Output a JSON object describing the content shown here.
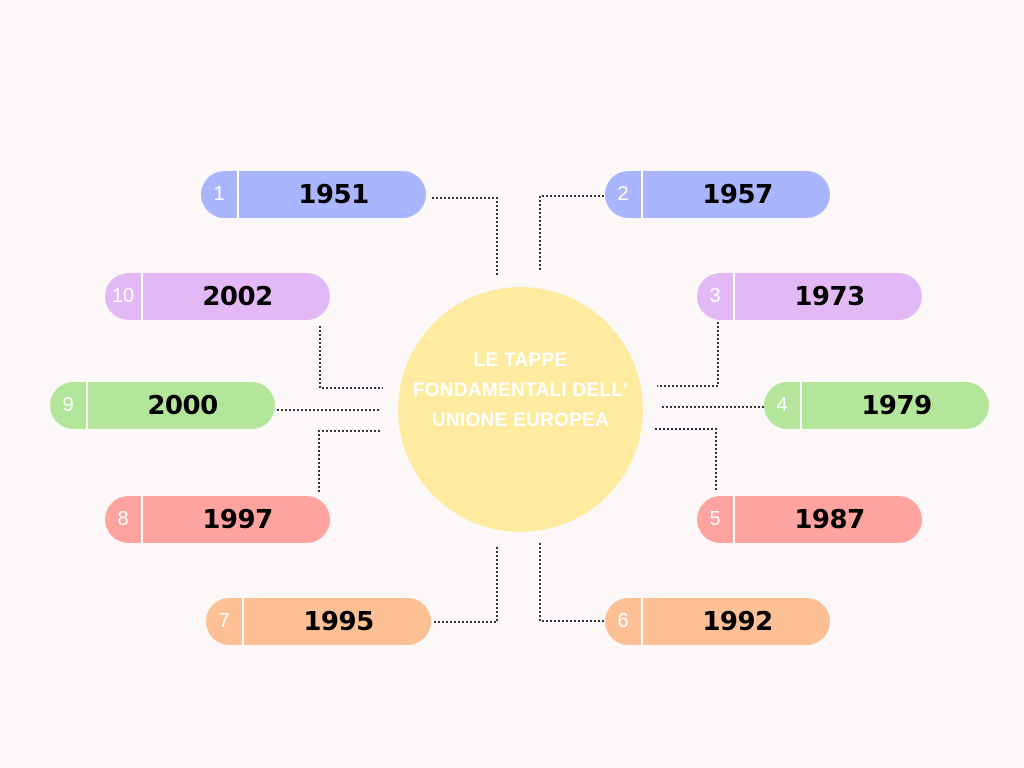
{
  "center": {
    "title": "LE TAPPE FONDAMENTALI DELL' UNIONE EUROPEA",
    "color": "#feeba0"
  },
  "colors": {
    "blue": "#a9b6fd",
    "purple": "#e2b9f4",
    "green": "#b3e69b",
    "red": "#fea3a0",
    "orange": "#fdbf94"
  },
  "items": [
    {
      "num": "1",
      "year": "1951",
      "color": "#a9b6fd"
    },
    {
      "num": "2",
      "year": "1957",
      "color": "#a9b6fd"
    },
    {
      "num": "3",
      "year": "1973",
      "color": "#e2b9f4"
    },
    {
      "num": "4",
      "year": "1979",
      "color": "#b3e69b"
    },
    {
      "num": "5",
      "year": "1987",
      "color": "#fea3a0"
    },
    {
      "num": "6",
      "year": "1992",
      "color": "#fdbf94"
    },
    {
      "num": "7",
      "year": "1995",
      "color": "#fdbf94"
    },
    {
      "num": "8",
      "year": "1997",
      "color": "#fea3a0"
    },
    {
      "num": "9",
      "year": "2000",
      "color": "#b3e69b"
    },
    {
      "num": "10",
      "year": "2002",
      "color": "#e2b9f4"
    }
  ]
}
